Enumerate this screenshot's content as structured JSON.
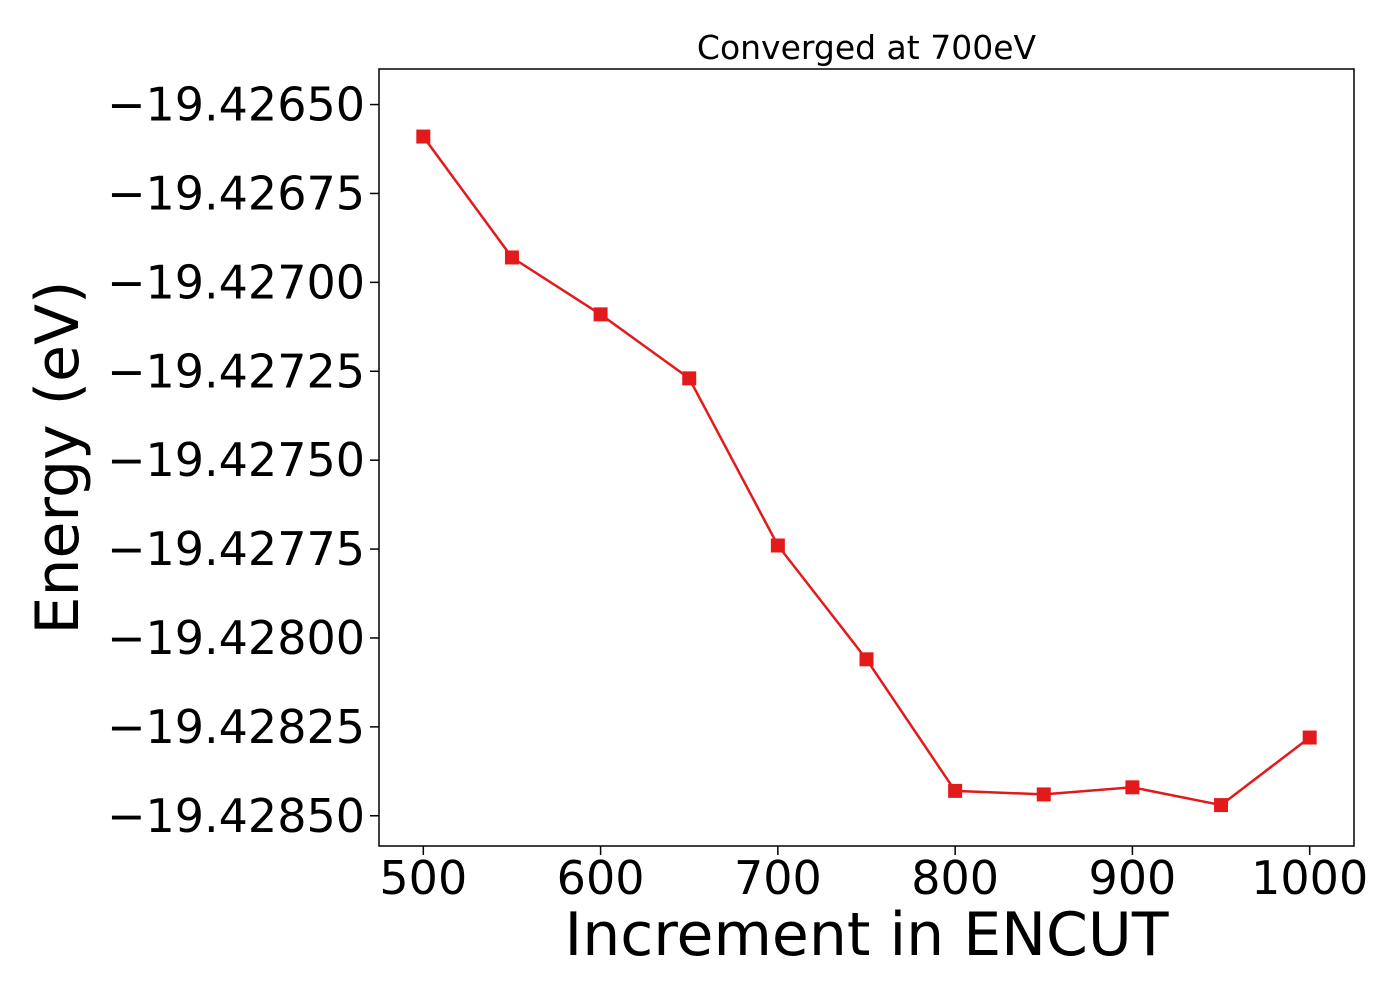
{
  "chart_data": {
    "type": "line",
    "title": "Converged at 700eV",
    "xlabel": "Increment in ENCUT",
    "ylabel": "Energy (eV)",
    "x": [
      500,
      550,
      600,
      650,
      700,
      750,
      800,
      850,
      900,
      950,
      1000
    ],
    "series": [
      {
        "name": "",
        "values": [
          -19.42659,
          -19.42693,
          -19.42709,
          -19.42727,
          -19.42774,
          -19.42806,
          -19.42843,
          -19.42844,
          -19.42842,
          -19.42847,
          -19.42828
        ],
        "color": "#e31a1c",
        "marker": "square"
      }
    ],
    "xticks": [
      500,
      600,
      700,
      800,
      900,
      1000
    ],
    "xtick_labels": [
      "500",
      "600",
      "700",
      "800",
      "900",
      "1000"
    ],
    "yticks": [
      -19.4265,
      -19.42675,
      -19.427,
      -19.42725,
      -19.4275,
      -19.42775,
      -19.428,
      -19.42825,
      -19.4285
    ],
    "ytick_labels": [
      "−19.42650",
      "−19.42675",
      "−19.42700",
      "−19.42725",
      "−19.42750",
      "−19.42775",
      "−19.42800",
      "−19.42825",
      "−19.42850"
    ],
    "xlim": [
      475,
      1025
    ],
    "ylim": [
      -19.428585,
      -19.4264
    ],
    "grid": false,
    "legend": "none"
  }
}
